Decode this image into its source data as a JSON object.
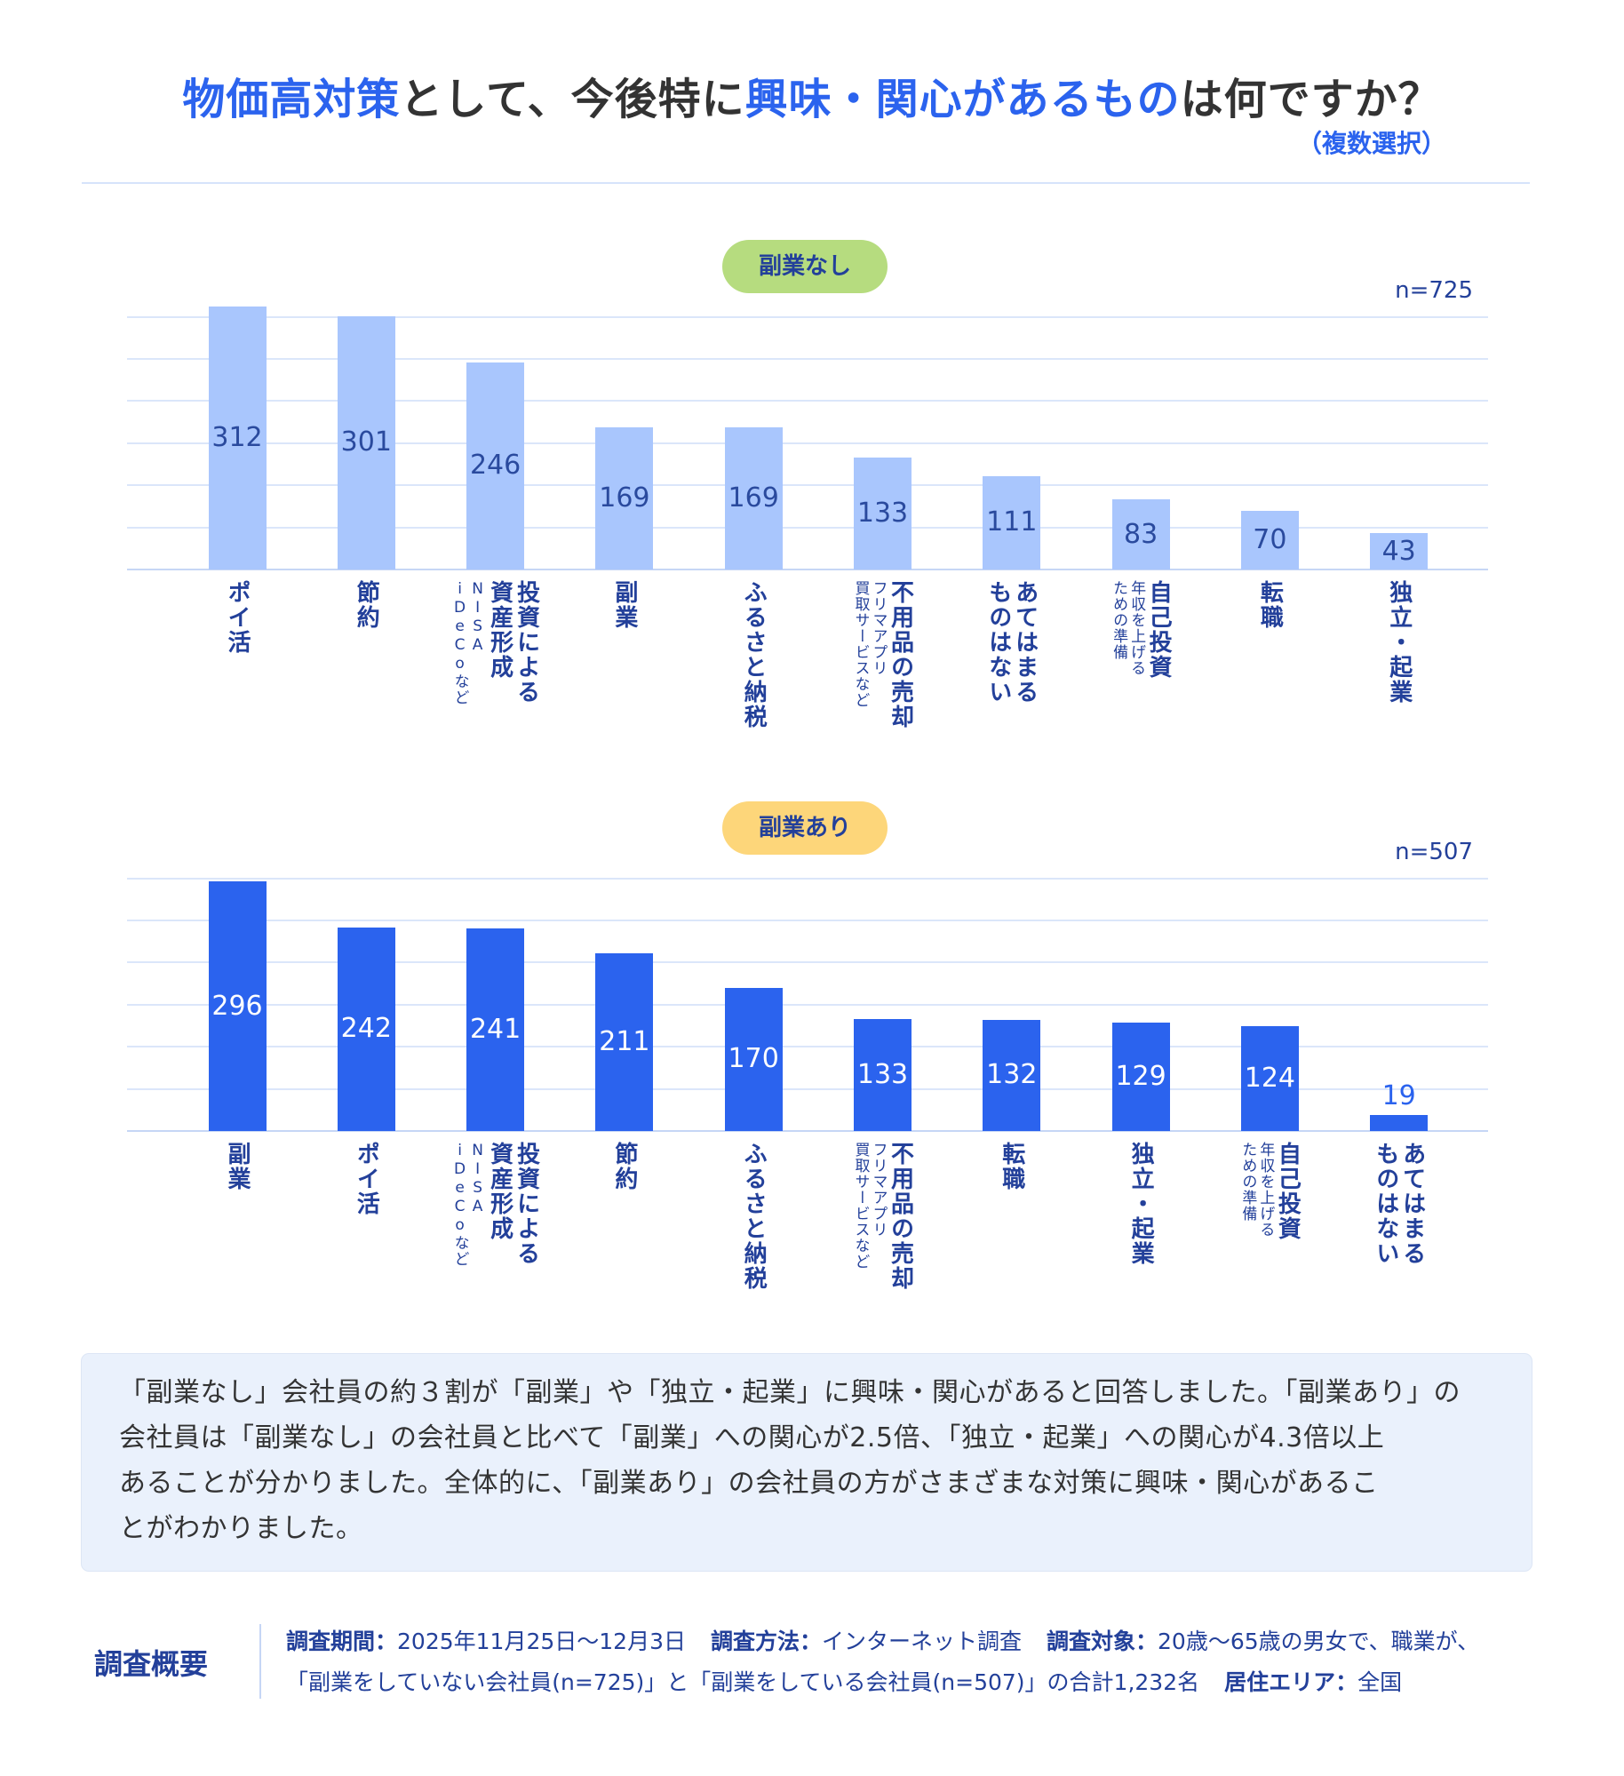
{
  "header": {
    "title_parts": [
      {
        "text": "物価高対策",
        "highlight": true
      },
      {
        "text": "として、今後特に",
        "highlight": false
      },
      {
        "text": "興味・関心があるもの",
        "highlight": true
      },
      {
        "text": "は何ですか？",
        "highlight": false
      }
    ],
    "subtitle": "（複数選択）"
  },
  "colors": {
    "accent": "#2b63ee",
    "light_bar": "#a9c6fd",
    "dark_bar": "#2b63ee",
    "navy_text": "#23409a",
    "pill_green": "#b6dc7f",
    "pill_yellow": "#fdd67a",
    "summary_bg": "#eaf1fc"
  },
  "chart_data": [
    {
      "type": "bar",
      "title": "副業なし",
      "n_label": "n=725",
      "ylim": [
        0,
        300
      ],
      "grid": true,
      "grid_step": 50,
      "bar_color": "#a9c6fd",
      "label_color": "#2a4a9e",
      "pill_color": "#b6dc7f",
      "categories": [
        {
          "main": [
            "ポイ活"
          ],
          "sub": []
        },
        {
          "main": [
            "節約"
          ],
          "sub": []
        },
        {
          "main": [
            "投資による",
            "資産形成"
          ],
          "sub": [
            "NISA",
            "iDeCoなど"
          ]
        },
        {
          "main": [
            "副業"
          ],
          "sub": []
        },
        {
          "main": [
            "ふるさと納税"
          ],
          "sub": []
        },
        {
          "main": [
            "不用品の売却"
          ],
          "sub": [
            "フリマアプリ",
            "買取サービスなど"
          ]
        },
        {
          "main": [
            "あてはまる",
            "ものはない"
          ],
          "sub": []
        },
        {
          "main": [
            "自己投資"
          ],
          "sub": [
            "年収を上げる",
            "ための準備"
          ]
        },
        {
          "main": [
            "転職"
          ],
          "sub": []
        },
        {
          "main": [
            "独立・起業"
          ],
          "sub": []
        }
      ],
      "values": [
        312,
        301,
        246,
        169,
        169,
        133,
        111,
        83,
        70,
        43
      ]
    },
    {
      "type": "bar",
      "title": "副業あり",
      "n_label": "n=507",
      "ylim": [
        0,
        300
      ],
      "grid": true,
      "grid_step": 50,
      "bar_color": "#2b63ee",
      "label_color": "#ffffff",
      "pill_color": "#fdd67a",
      "categories": [
        {
          "main": [
            "副業"
          ],
          "sub": []
        },
        {
          "main": [
            "ポイ活"
          ],
          "sub": []
        },
        {
          "main": [
            "投資による",
            "資産形成"
          ],
          "sub": [
            "NISA",
            "iDeCoなど"
          ]
        },
        {
          "main": [
            "節約"
          ],
          "sub": []
        },
        {
          "main": [
            "ふるさと納税"
          ],
          "sub": []
        },
        {
          "main": [
            "不用品の売却"
          ],
          "sub": [
            "フリマアプリ",
            "買取サービスなど"
          ]
        },
        {
          "main": [
            "転職"
          ],
          "sub": []
        },
        {
          "main": [
            "独立・起業"
          ],
          "sub": []
        },
        {
          "main": [
            "自己投資"
          ],
          "sub": [
            "年収を上げる",
            "ための準備"
          ]
        },
        {
          "main": [
            "あてはまる",
            "ものはない"
          ],
          "sub": []
        }
      ],
      "values": [
        296,
        242,
        241,
        211,
        170,
        133,
        132,
        129,
        124,
        19
      ]
    }
  ],
  "summary": {
    "lines": [
      "「副業なし」会社員の約３割が「副業」や「独立・起業」に興味・関心があると回答しました。「副業あり」の",
      "会社員は「副業なし」の会社員と比べて「副業」への関心が2.5倍、「独立・起業」への関心が4.3倍以上",
      "あることが分かりました。全体的に、「副業あり」の会社員の方がさまざまな対策に興味・関心があるこ",
      "とがわかりました。"
    ]
  },
  "footer": {
    "title": "調査概要",
    "period_label": "調査期間：",
    "period": "2025年11月25日〜12月3日",
    "method_label": "調査方法：",
    "method": "インターネット調査",
    "target_label": "調査対象：",
    "target_1": "20歳〜65歳の男女で、職業が、",
    "target_2": "「副業をしていない会社員(n=725)」と「副業をしている会社員(n=507)」の合計1,232名",
    "area_label": "居住エリア：",
    "area": "全国"
  }
}
